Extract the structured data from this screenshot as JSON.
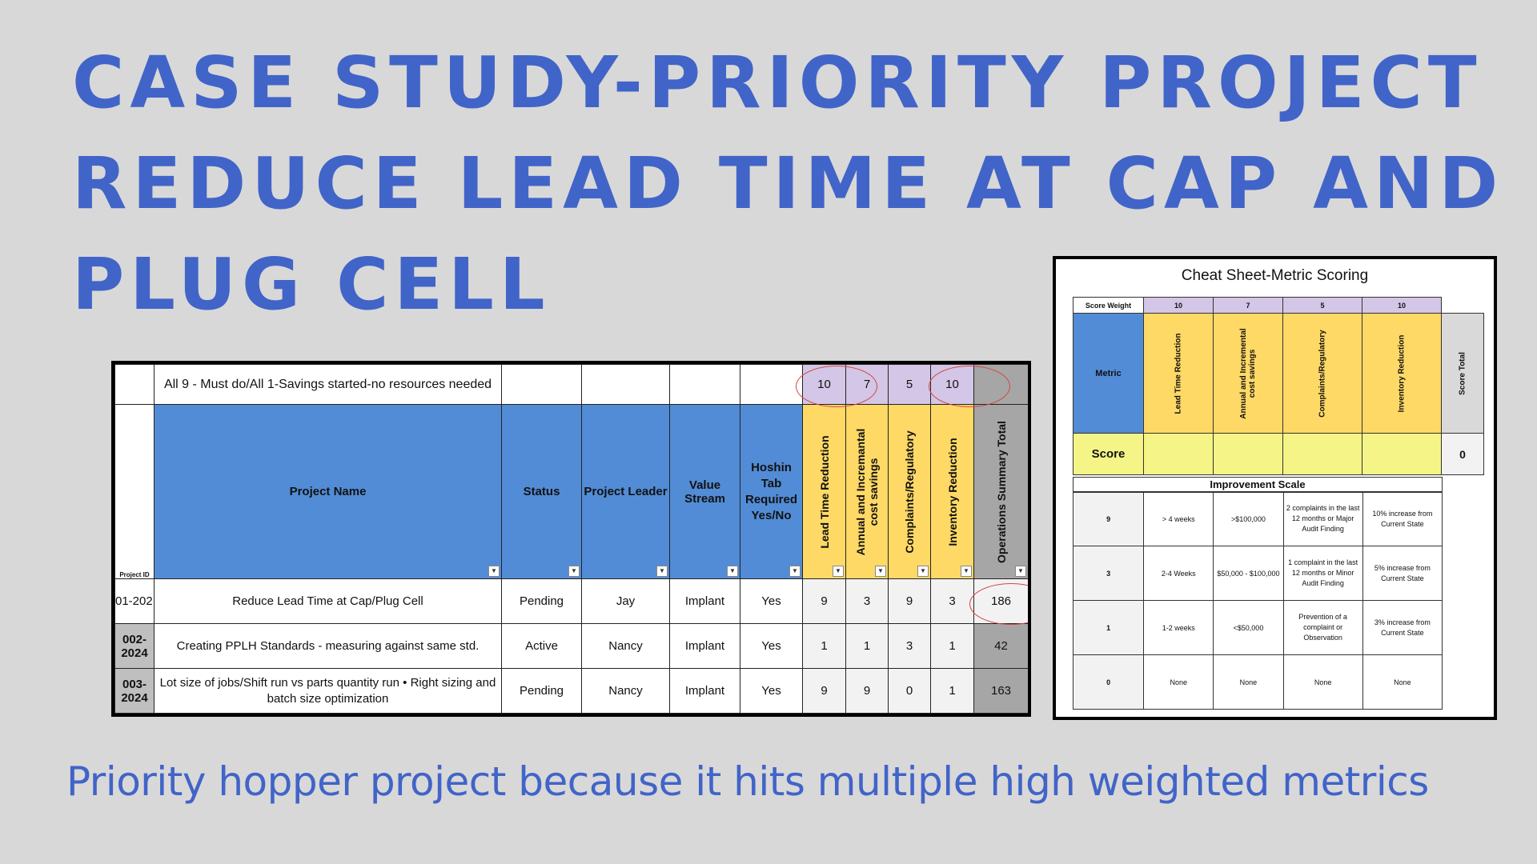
{
  "title_lines": [
    "CASE STUDY-PRIORITY PROJECT",
    "REDUCE LEAD TIME AT CAP AND",
    "PLUG CELL"
  ],
  "caption": "Priority hopper project because it hits multiple high weighted metrics",
  "sheet": {
    "group_label": "All 9 - Must do/All 1-Savings started-no resources needed",
    "weights": [
      "10",
      "7",
      "5",
      "10"
    ],
    "headers": {
      "project_id": "Project ID",
      "project_name": "Project Name",
      "status": "Status",
      "project_leader": "Project Leader",
      "value_stream": "Value Stream",
      "hoshin": "Hoshin Tab Required Yes/No",
      "lead_time": "Lead Time Reduction",
      "savings": "Annual and Incremantal cost savings",
      "complaints": "Complaints/Regulatory",
      "inventory": "Inventory  Reduction",
      "total": "Operations Summary Total"
    },
    "dropdown_glyph": "▼",
    "rows": [
      {
        "id": "01-202",
        "name": "Reduce Lead Time at Cap/Plug Cell",
        "status": "Pending",
        "leader": "Jay",
        "stream": "Implant",
        "hoshin": "Yes",
        "m1": "9",
        "m2": "3",
        "m3": "9",
        "m4": "3",
        "total": "186"
      },
      {
        "id": "002-2024",
        "name": "Creating PPLH Standards - measuring against same std.",
        "status": "Active",
        "leader": "Nancy",
        "stream": "Implant",
        "hoshin": "Yes",
        "m1": "1",
        "m2": "1",
        "m3": "3",
        "m4": "1",
        "total": "42"
      },
      {
        "id": "003-2024",
        "name": "Lot size of jobs/Shift run vs parts quantity run •  Right sizing and batch size optimization",
        "status": "Pending",
        "leader": "Nancy",
        "stream": "Implant",
        "hoshin": "Yes",
        "m1": "9",
        "m2": "9",
        "m3": "0",
        "m4": "1",
        "total": "163"
      }
    ]
  },
  "cheat_sheet": {
    "title": "Cheat Sheet-Metric Scoring",
    "score_weight_label": "Score Weight",
    "weights": [
      "10",
      "7",
      "5",
      "10"
    ],
    "metric_label": "Metric",
    "metrics": [
      "Lead Time Reduction",
      "Annual and Incremental cost savings",
      "Complaints/Regulatory",
      "Inventory  Reduction"
    ],
    "score_total_label": "Score  Total",
    "score_label": "Score",
    "score_value": "0",
    "improvement_scale_label": "Improvement Scale",
    "scale": [
      {
        "score": "9",
        "c1": "> 4 weeks",
        "c2": ">$100,000",
        "c3": "2 complaints in the last 12 months or Major Audit Finding",
        "c4": "10% increase from Current State"
      },
      {
        "score": "3",
        "c1": "2-4 Weeks",
        "c2": "$50,000 - $100,000",
        "c3": "1 complaint in the last 12 months or Minor Audit Finding",
        "c4": "5% increase from Current State"
      },
      {
        "score": "1",
        "c1": "1-2 weeks",
        "c2": "<$50,000",
        "c3": "Prevention of a complaint or Observation",
        "c4": "3% increase from Current State"
      },
      {
        "score": "0",
        "c1": "None",
        "c2": "None",
        "c3": "None",
        "c4": "None"
      }
    ]
  },
  "colors": {
    "title": "#4164c8",
    "background": "#d8d8d8",
    "header_blue": "#528cd6",
    "header_yellow": "#ffd966",
    "weight_purple": "#d3c6e6",
    "total_gray": "#a6a6a6",
    "annotation_red": "#d64545",
    "score_row_yellow": "#f5f587"
  }
}
